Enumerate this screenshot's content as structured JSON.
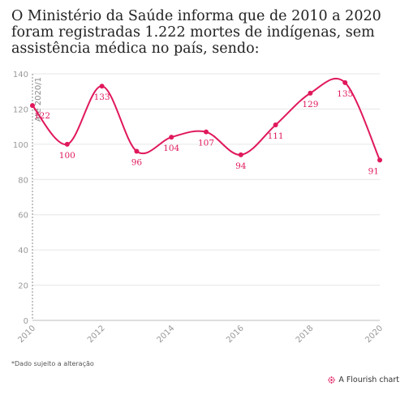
{
  "title": "O Ministério da Saúde informa que de 2010 a 2020 foram registradas 1.222 mortes de indígenas, sem assistência médica no país, sendo:",
  "footnote": "*Dado sujeito a alteração",
  "brand": "A Flourish chart",
  "colors": {
    "series": "#e0185c",
    "grid": "#e6e6e6",
    "axis_text": "#999999",
    "annotation": "#888888"
  },
  "chart_data": {
    "type": "line",
    "x": [
      2010,
      2011,
      2012,
      2013,
      2014,
      2015,
      2016,
      2017,
      2018,
      2019,
      2020
    ],
    "values": [
      122,
      100,
      133,
      96,
      104,
      107,
      94,
      111,
      129,
      135,
      91
    ],
    "xticks": [
      "2010",
      "2012",
      "2014",
      "2016",
      "2018",
      "2020"
    ],
    "yticks": [
      "0",
      "20",
      "40",
      "60",
      "80",
      "100",
      "120",
      "140"
    ],
    "ylim": [
      0,
      140
    ],
    "xlim": [
      2010,
      2020
    ],
    "annotation": "Até 2020/1",
    "grid": true
  }
}
